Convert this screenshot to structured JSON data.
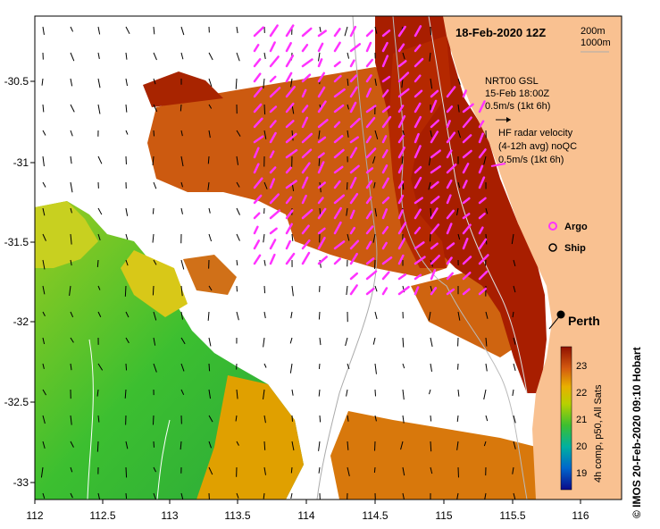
{
  "title": "18-Feb-2020 12Z",
  "contours": [
    "200m",
    "1000m"
  ],
  "model_label": {
    "line1": "NRT00 GSL",
    "line2": "15-Feb 18:00Z",
    "line3": "0.5m/s (1kt 6h)"
  },
  "radar_label": {
    "line1": "HF radar velocity",
    "line2": "(4-12h avg) noQC",
    "line3": "0.5m/s (1kt 6h)"
  },
  "legend": {
    "argo": "Argo",
    "ship": "Ship"
  },
  "city": "Perth",
  "colorbar": {
    "ticks": [
      "23",
      "22",
      "21",
      "20",
      "19"
    ],
    "caption": "4h comp, p50, All Sats"
  },
  "credit": "© IMOS 20-Feb-2020 09:10 Hobart",
  "axes": {
    "x_ticks": [
      "112",
      "112.5",
      "113",
      "113.5",
      "114",
      "114.5",
      "115",
      "115.5",
      "116"
    ],
    "y_ticks": [
      "-30.5",
      "-31",
      "-31.5",
      "-32",
      "-32.5",
      "-33"
    ]
  },
  "colors": {
    "land": "#f9c191",
    "warm_sst": "#b02000",
    "mid_sst": "#d45a10",
    "cool_sst": "#e8b000",
    "cold_sst": "#3cbf30",
    "radar_arrow": "#ff33ff"
  }
}
